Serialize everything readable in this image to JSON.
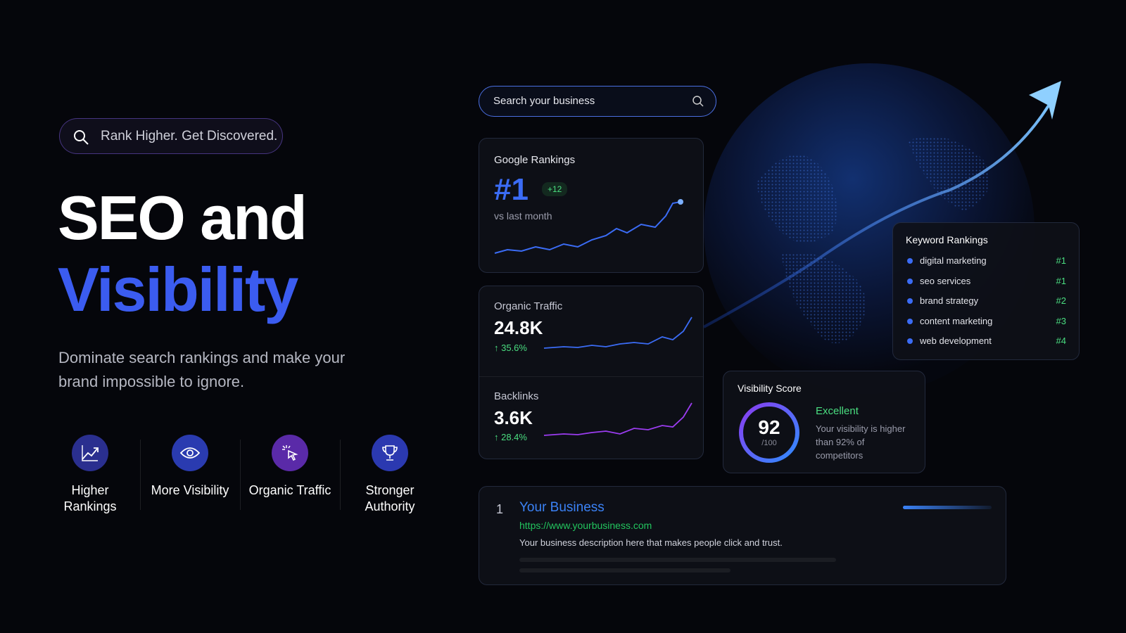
{
  "hero": {
    "tagline": "Rank Higher. Get Discovered.",
    "title_line1": "SEO and",
    "title_line2": "Visibility",
    "subtitle": "Dominate search rankings and make your brand impossible to ignore."
  },
  "features": [
    {
      "label": "Higher Rankings"
    },
    {
      "label": "More Visibility"
    },
    {
      "label": "Organic Traffic"
    },
    {
      "label": "Stronger Authority"
    }
  ],
  "search": {
    "placeholder": "Search your business"
  },
  "rankings": {
    "title": "Google Rankings",
    "rank": "#1",
    "change": "+12",
    "note": "vs last month"
  },
  "traffic": {
    "title": "Organic Traffic",
    "value": "24.8K",
    "change": "↑ 35.6%"
  },
  "backlinks": {
    "title": "Backlinks",
    "value": "3.6K",
    "change": "↑ 28.4%"
  },
  "keywords": {
    "title": "Keyword Rankings",
    "items": [
      {
        "term": "digital marketing",
        "rank": "#1"
      },
      {
        "term": "seo services",
        "rank": "#1"
      },
      {
        "term": "brand strategy",
        "rank": "#2"
      },
      {
        "term": "content marketing",
        "rank": "#3"
      },
      {
        "term": "web development",
        "rank": "#4"
      }
    ]
  },
  "visibility": {
    "title": "Visibility Score",
    "score": 92,
    "max_label": "/100",
    "rating": "Excellent",
    "description": "Your visibility is higher than 92% of competitors"
  },
  "result": {
    "position": 1,
    "title": "Your Business",
    "url": "https://www.yourbusiness.com",
    "description": "Your business description here that makes people click and trust."
  }
}
